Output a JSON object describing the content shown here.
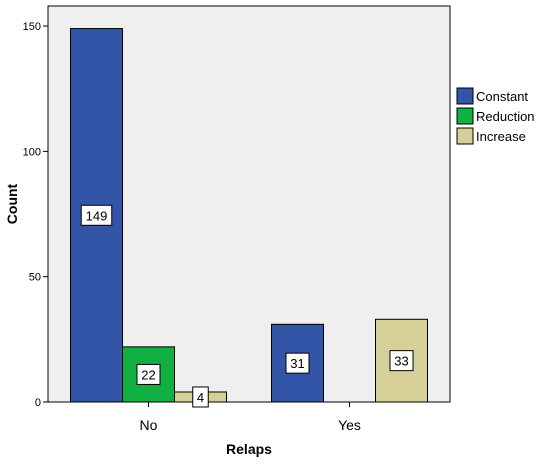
{
  "chart_data": {
    "type": "bar",
    "xlabel": "Relaps",
    "ylabel": "Count",
    "categories": [
      "No",
      "Yes"
    ],
    "ylim": [
      0,
      158
    ],
    "yticks": [
      0,
      50,
      100,
      150
    ],
    "grid": false,
    "legend_position": "right",
    "series": [
      {
        "name": "Constant",
        "color": "#3355a8",
        "values": [
          149,
          31
        ]
      },
      {
        "name": "Reduction",
        "color": "#12b043",
        "values": [
          22,
          null
        ]
      },
      {
        "name": "Increase",
        "color": "#d6cf98",
        "values": [
          4,
          33
        ]
      }
    ],
    "data_labels": [
      [
        "149",
        "31"
      ],
      [
        "22",
        ""
      ],
      [
        "4",
        "33"
      ]
    ]
  }
}
